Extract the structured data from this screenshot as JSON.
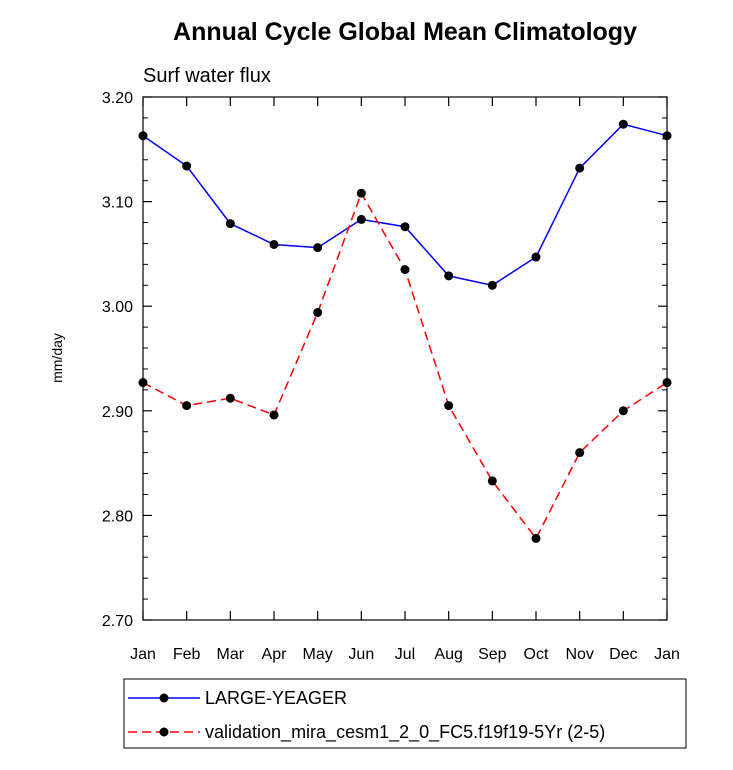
{
  "chart_data": {
    "type": "line",
    "title": "Annual Cycle Global Mean Climatology",
    "subtitle": "Surf water flux",
    "xlabel": "",
    "ylabel": "mm/day",
    "categories": [
      "Jan",
      "Feb",
      "Mar",
      "Apr",
      "May",
      "Jun",
      "Jul",
      "Aug",
      "Sep",
      "Oct",
      "Nov",
      "Dec",
      "Jan"
    ],
    "ylim": [
      2.7,
      3.2
    ],
    "yticks": [
      "2.70",
      "2.80",
      "2.90",
      "3.00",
      "3.10",
      "3.20"
    ],
    "grid": false,
    "legend_position": "bottom",
    "series": [
      {
        "name": "LARGE-YEAGER",
        "color": "#0000ff",
        "dash": "solid",
        "values": [
          3.163,
          3.134,
          3.079,
          3.059,
          3.056,
          3.083,
          3.076,
          3.029,
          3.02,
          3.047,
          3.132,
          3.174,
          3.163
        ]
      },
      {
        "name": "validation_mira_cesm1_2_0_FC5.f19f19-5Yr (2-5)",
        "color": "#ff0000",
        "dash": "dashed",
        "values": [
          2.927,
          2.905,
          2.912,
          2.896,
          2.994,
          3.108,
          3.035,
          2.905,
          2.833,
          2.778,
          2.86,
          2.9,
          2.927
        ]
      }
    ]
  }
}
